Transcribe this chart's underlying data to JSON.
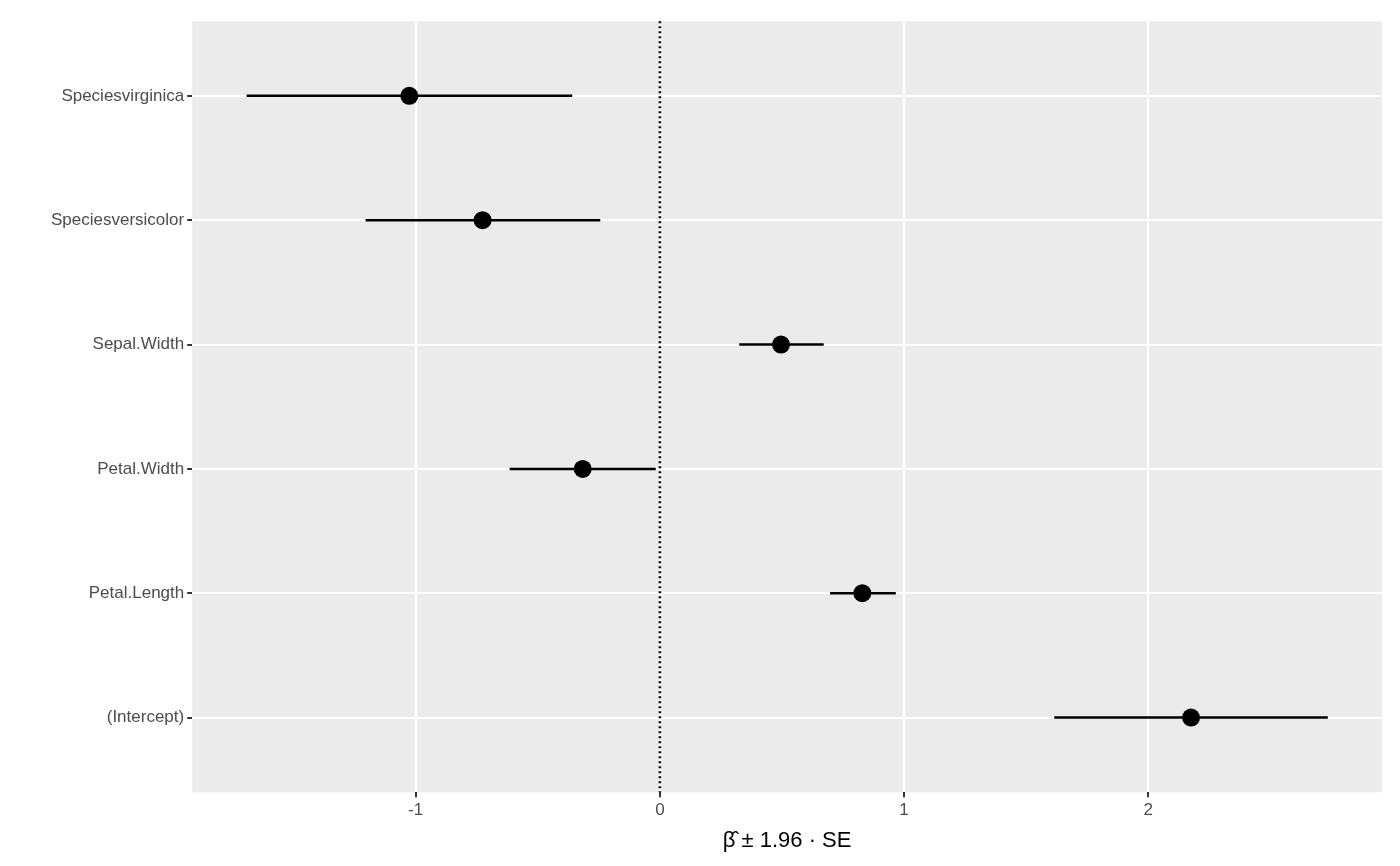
{
  "chart_data": {
    "type": "scatter",
    "orientation": "horizontal",
    "categories": [
      "Speciesvirginica",
      "Speciesversicolor",
      "Sepal.Width",
      "Petal.Width",
      "Petal.Length",
      "(Intercept)"
    ],
    "values": [
      -1.026,
      -0.726,
      0.496,
      -0.316,
      0.829,
      2.175
    ],
    "errors": [
      [
        -1.692,
        -0.359
      ],
      [
        -1.205,
        -0.244
      ],
      [
        0.325,
        0.671
      ],
      [
        -0.615,
        -0.017
      ],
      [
        0.697,
        0.966
      ],
      [
        1.615,
        2.735
      ]
    ],
    "color": "#000000",
    "xlabel": "β̂ ± 1.96 · SE",
    "xlim": [
      -1.915,
      2.957
    ],
    "xticks": [
      -1,
      0,
      1,
      2
    ],
    "ref_lines": [
      {
        "axis": "x",
        "value": 0,
        "line_style": "dotted",
        "color": "#000000"
      }
    ],
    "grid": true,
    "legend": false,
    "marker": "circle"
  }
}
